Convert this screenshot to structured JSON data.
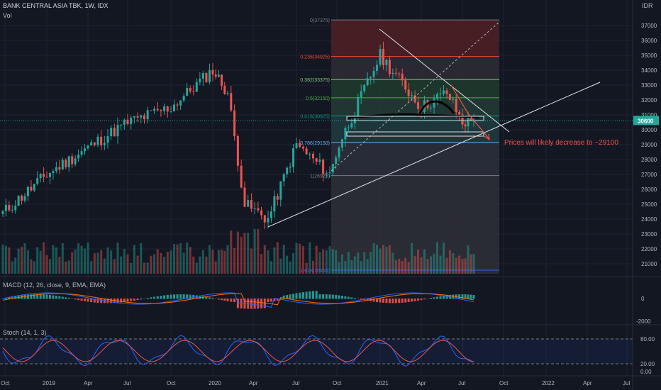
{
  "header": {
    "symbol": "BANK CENTRAL ASIA TBK, 1W, IDX",
    "vol_label": "Vol",
    "currency": "IDR"
  },
  "colors": {
    "bg": "#131722",
    "up": "#26a69a",
    "down": "#ef5350",
    "grid": "#1f2330",
    "text": "#b2b5be",
    "price_badge": "#26a69a"
  },
  "price_axis": {
    "ticks": [
      "37000",
      "36000",
      "35000",
      "34000",
      "33000",
      "32000",
      "31000",
      "30000",
      "29000",
      "28000",
      "27000",
      "26000",
      "25000",
      "24000",
      "23000",
      "22000",
      "21000"
    ],
    "last_price": "30600"
  },
  "time_axis": {
    "ticks": [
      "Oct",
      "2019",
      "Apr",
      "Jul",
      "Oct",
      "2020",
      "Apr",
      "Jul",
      "Oct",
      "2021",
      "Apr",
      "Jul",
      "Oct",
      "2022",
      "Apr",
      "Jul"
    ]
  },
  "fib": {
    "levels": [
      {
        "label": "0(37375)",
        "price": 37375
      },
      {
        "label": "0.236(34925)",
        "price": 34925
      },
      {
        "label": "0.382(33375)",
        "price": 33375
      },
      {
        "label": "0.5(32150)",
        "price": 32150
      },
      {
        "label": "0.618(30925)",
        "price": 30925
      },
      {
        "label": "0.786(29150)",
        "price": 29150
      },
      {
        "label": "1(26925)",
        "price": 26925
      },
      {
        "label": "1.618(20450)",
        "price": 20450
      }
    ]
  },
  "annotation": {
    "text": "Prices will likely decrease to ~29100"
  },
  "macd": {
    "title": "MACD (12, 26, close, 9, EMA, EMA)",
    "ticks": [
      "0",
      "-2000"
    ]
  },
  "stoch": {
    "title": "Stoch (14, 1, 3)",
    "ticks": [
      "80.00",
      "20.00",
      "0.00"
    ]
  },
  "chart_data": {
    "type": "candlestick",
    "title": "BANK CENTRAL ASIA TBK, 1W, IDX",
    "ylim": [
      20300,
      37800
    ],
    "close_path": [
      {
        "date": "2018-10",
        "close": 24400
      },
      {
        "date": "2019-01",
        "close": 27000
      },
      {
        "date": "2019-04",
        "close": 28800
      },
      {
        "date": "2019-07",
        "close": 30500
      },
      {
        "date": "2019-10",
        "close": 31500
      },
      {
        "date": "2020-01",
        "close": 34000
      },
      {
        "date": "2020-02",
        "close": 32500
      },
      {
        "date": "2020-03",
        "close": 25000
      },
      {
        "date": "2020-04",
        "close": 24000
      },
      {
        "date": "2020-06",
        "close": 29000
      },
      {
        "date": "2020-09",
        "close": 27000
      },
      {
        "date": "2020-10",
        "close": 29000
      },
      {
        "date": "2021-01",
        "close": 35000
      },
      {
        "date": "2021-03",
        "close": 31500
      },
      {
        "date": "2021-06",
        "close": 32500
      },
      {
        "date": "2021-07",
        "close": 30500
      },
      {
        "date": "2021-08",
        "close": 30600
      }
    ],
    "last_price": 30600
  }
}
